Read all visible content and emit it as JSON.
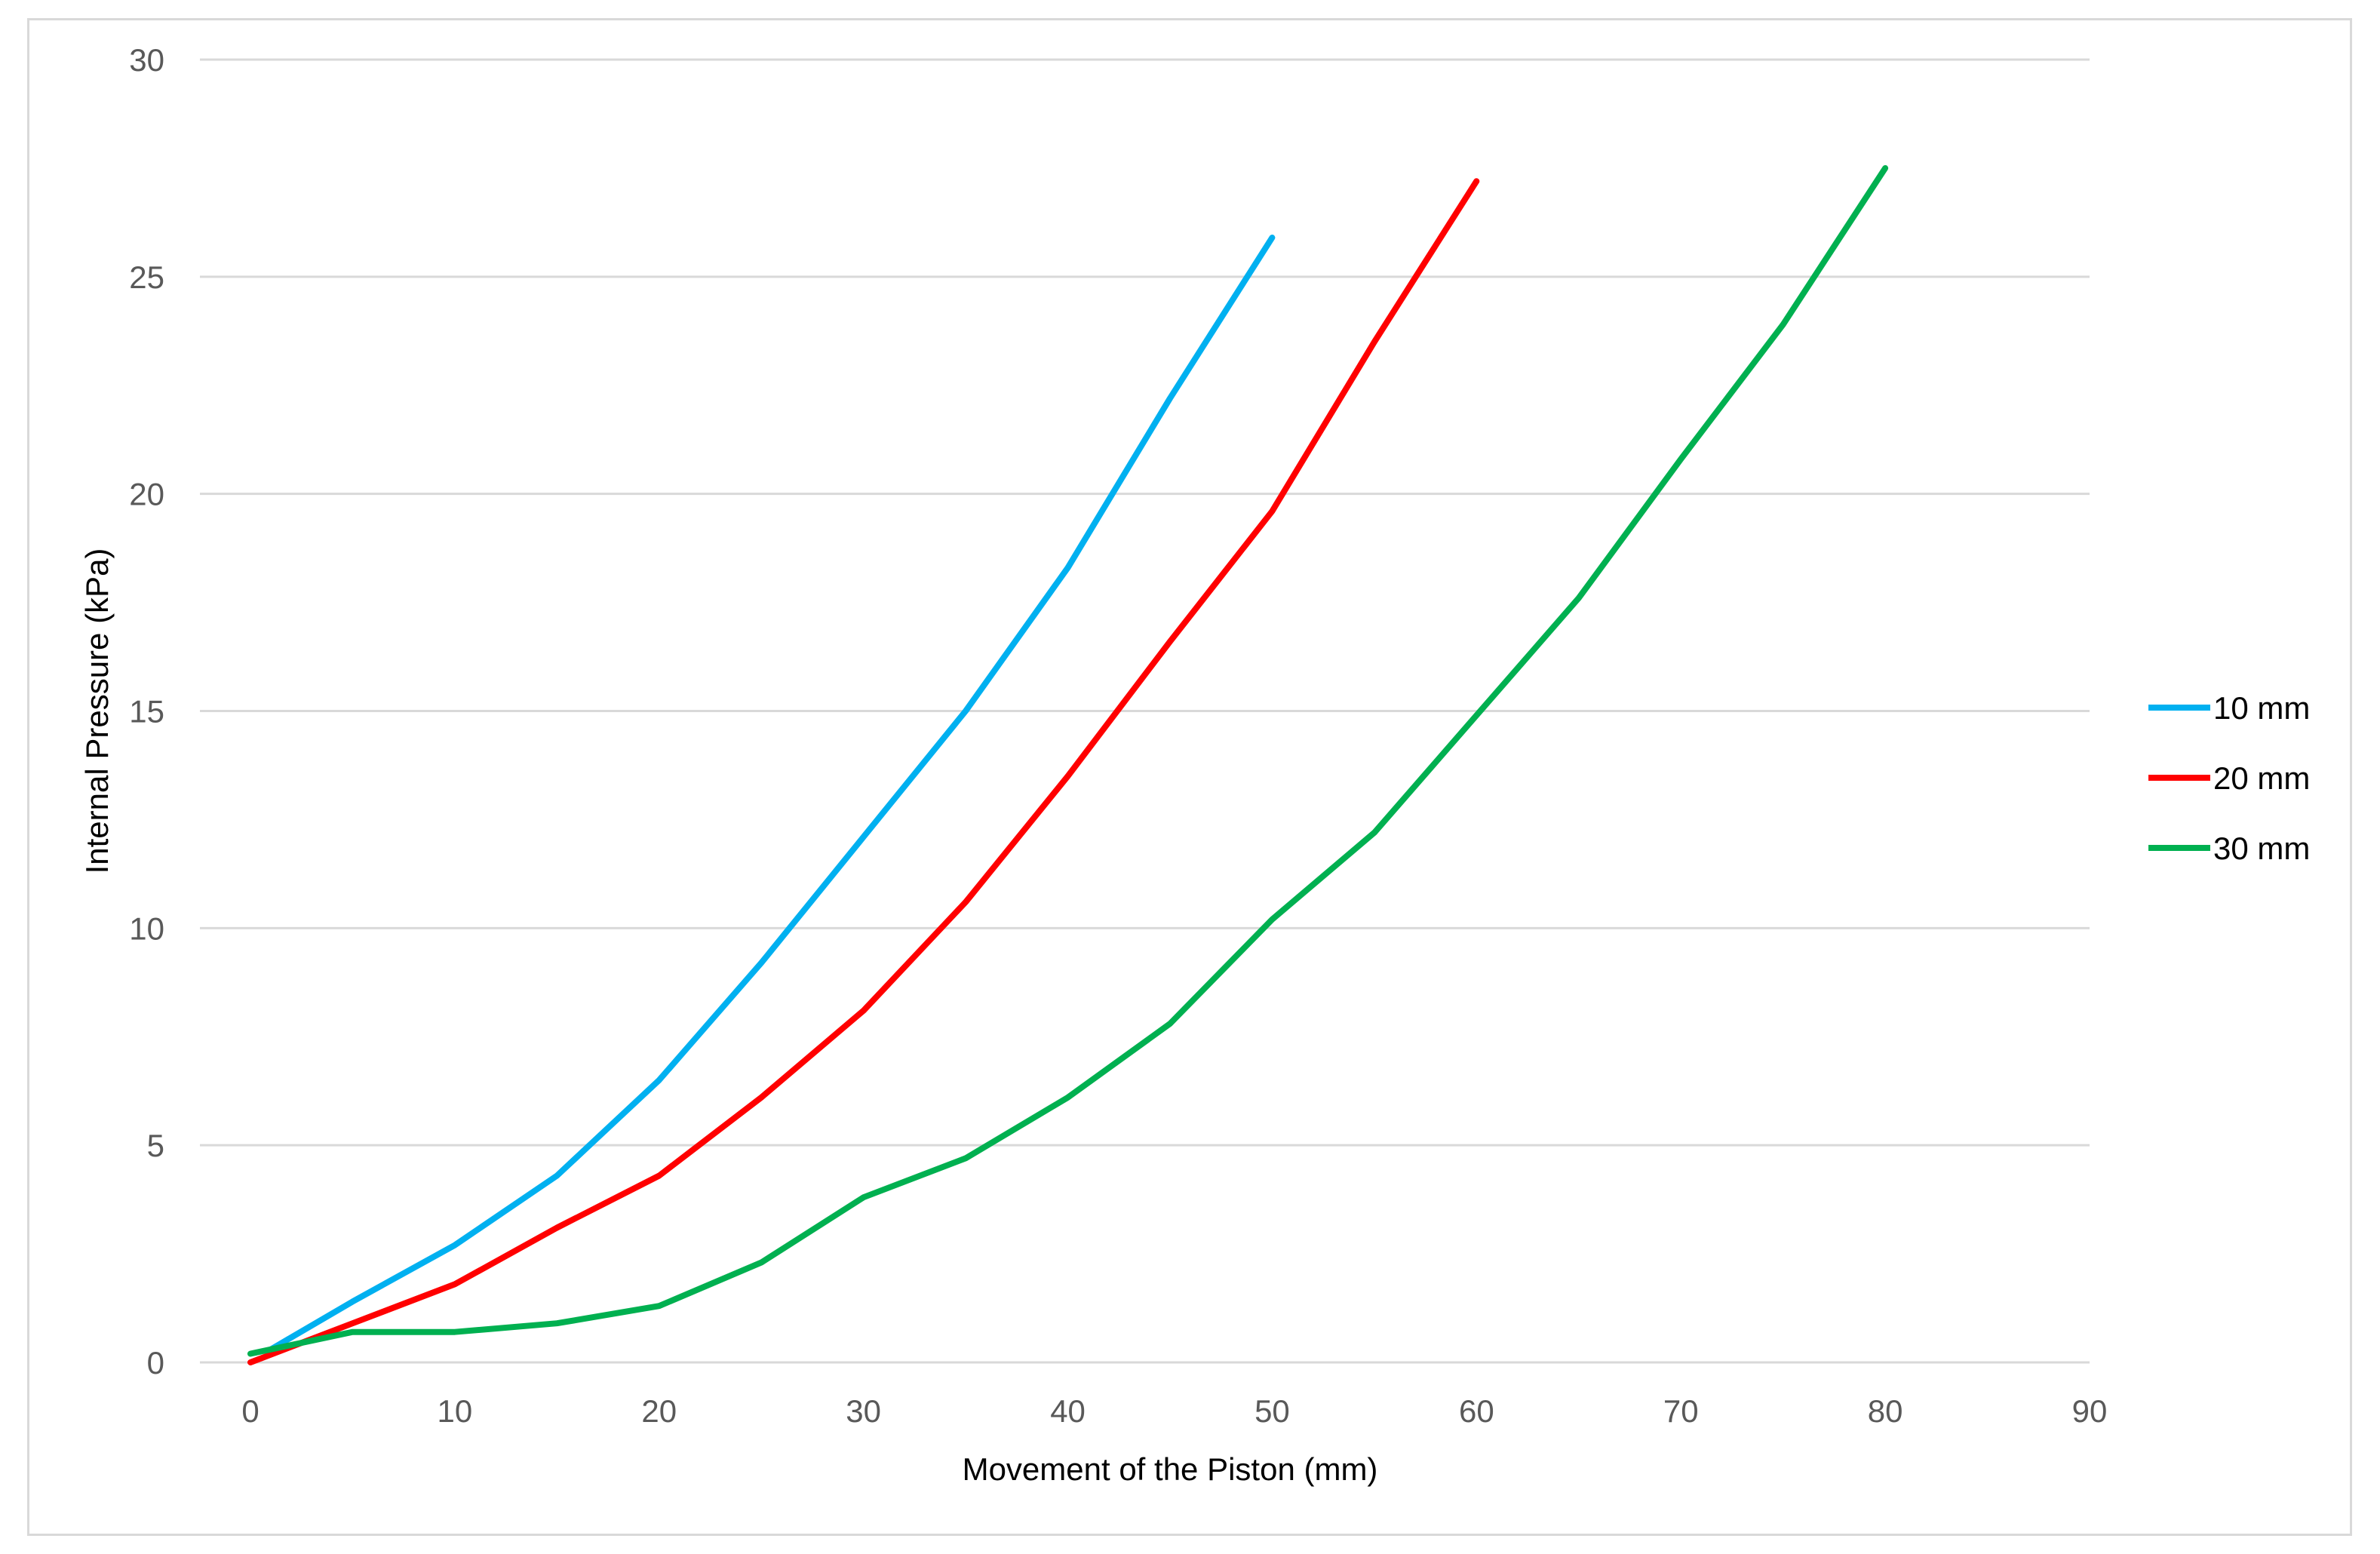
{
  "chart_data": {
    "type": "line",
    "title": "",
    "xlabel": "Movement of the Piston (mm)",
    "ylabel": "Internal Pressure (kPa)",
    "xlim": [
      0,
      90
    ],
    "ylim": [
      0,
      30
    ],
    "x_ticks": [
      "0",
      "10",
      "20",
      "30",
      "40",
      "50",
      "60",
      "70",
      "80",
      "90"
    ],
    "y_ticks": [
      "0",
      "5",
      "10",
      "15",
      "20",
      "25",
      "30"
    ],
    "grid": "horizontal",
    "legend_position": "right",
    "series": [
      {
        "name": "10 mm",
        "color": "#00b0f0",
        "x": [
          1,
          5,
          10,
          15,
          20,
          25,
          30,
          35,
          40,
          45,
          50
        ],
        "y": [
          0.3,
          1.4,
          2.7,
          4.3,
          6.5,
          9.2,
          12.1,
          15.0,
          18.3,
          22.2,
          25.9
        ]
      },
      {
        "name": "20 mm",
        "color": "#ff0000",
        "x": [
          0,
          5,
          10,
          15,
          20,
          25,
          30,
          35,
          40,
          45,
          50,
          55,
          60
        ],
        "y": [
          0.0,
          0.9,
          1.8,
          3.1,
          4.3,
          6.1,
          8.1,
          10.6,
          13.5,
          16.6,
          19.6,
          23.5,
          27.2
        ]
      },
      {
        "name": "30 mm",
        "color": "#00b050",
        "x": [
          0,
          5,
          10,
          15,
          20,
          25,
          30,
          35,
          40,
          45,
          50,
          55,
          60,
          65,
          70,
          75,
          80
        ],
        "y": [
          0.2,
          0.7,
          0.7,
          0.9,
          1.3,
          2.3,
          3.8,
          4.7,
          6.1,
          7.8,
          10.2,
          12.2,
          14.9,
          17.6,
          20.8,
          23.9,
          27.5
        ]
      }
    ]
  }
}
